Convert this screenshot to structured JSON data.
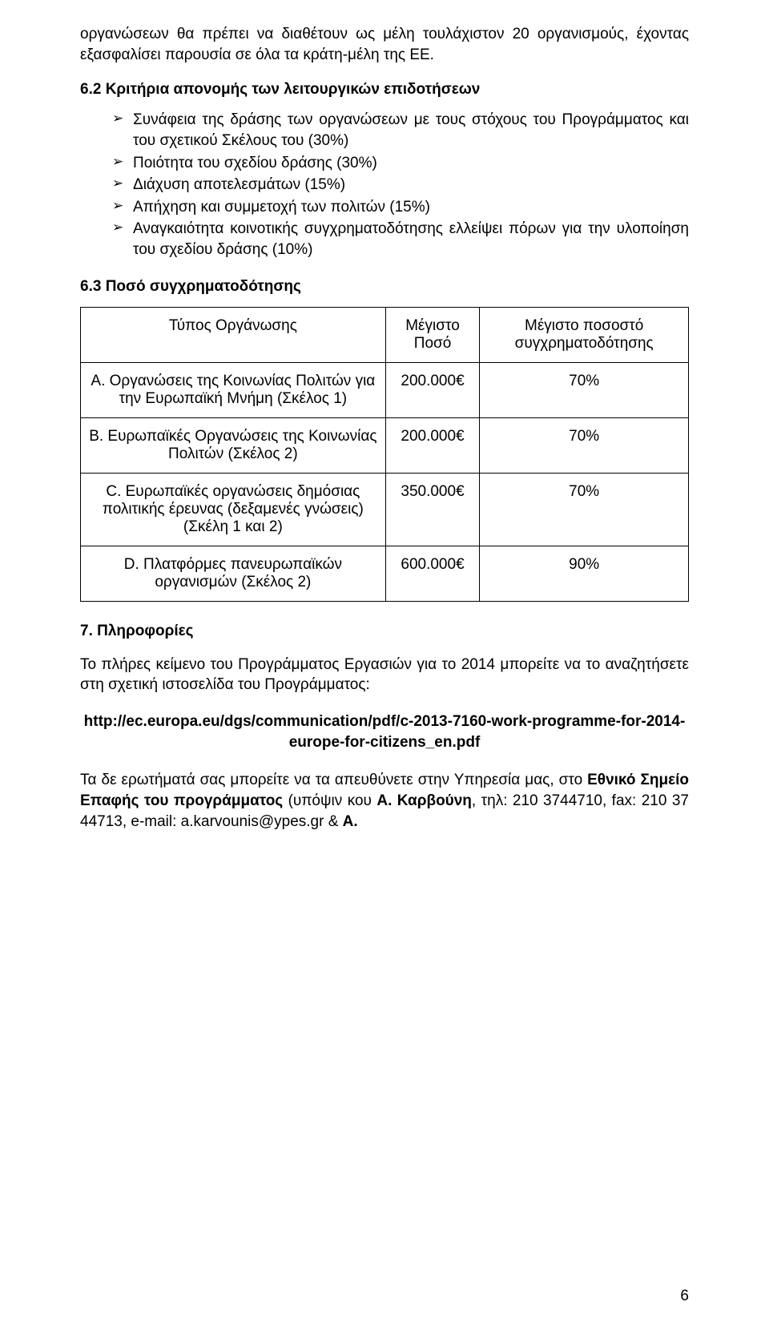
{
  "intro_para": "οργανώσεων θα πρέπει να διαθέτουν ως μέλη τουλάχιστον 20 οργανισμούς, έχοντας εξασφαλίσει παρουσία σε όλα τα κράτη-μέλη της ΕΕ.",
  "h62": "6.2 Κριτήρια απονομής των λειτουργικών επιδοτήσεων",
  "bullets": [
    "Συνάφεια της δράσης των οργανώσεων με τους στόχους του Προγράμματος και του σχετικού Σκέλους του (30%)",
    "Ποιότητα του σχεδίου δράσης (30%)",
    "Διάχυση αποτελεσμάτων (15%)",
    "Απήχηση και συμμετοχή των πολιτών (15%)",
    "Αναγκαιότητα κοινοτικής συγχρηματοδότησης ελλείψει πόρων για την υλοποίηση του σχεδίου δράσης (10%)"
  ],
  "h63": "6.3 Ποσό συγχρηματοδότησης",
  "table": {
    "headers": [
      "Τύπος Οργάνωσης",
      "Μέγιστο Ποσό",
      "Μέγιστο ποσοστό συγχρηματοδότησης"
    ],
    "rows": [
      {
        "type": "A. Οργανώσεις της Κοινωνίας Πολιτών για την Ευρωπαϊκή Μνήμη (Σκέλος 1)",
        "amount": "200.000€",
        "pct": "70%"
      },
      {
        "type": "B. Ευρωπαϊκές Οργανώσεις της Κοινωνίας Πολιτών (Σκέλος 2)",
        "amount": "200.000€",
        "pct": "70%"
      },
      {
        "type": "C. Ευρωπαϊκές οργανώσεις δημόσιας πολιτικής έρευνας (δεξαμενές γνώσεις)\n(Σκέλη 1 και 2)",
        "amount": "350.000€",
        "pct": "70%"
      },
      {
        "type": "D. Πλατφόρμες πανευρωπαϊκών οργανισμών (Σκέλος 2)",
        "amount": "600.000€",
        "pct": "90%"
      }
    ]
  },
  "h7": "7. Πληροφορίες",
  "info_para": "Το πλήρες κείμενο του Προγράμματος Εργασιών για το 2014 μπορείτε να το αναζητήσετε στη σχετική ιστοσελίδα του Προγράμματος:",
  "url": "http://ec.europa.eu/dgs/communication/pdf/c-2013-7160-work-programme-for-2014-europe-for-citizens_en.pdf",
  "contact_plain1": "Τα δε ερωτήματά σας μπορείτε να τα απευθύνετε στην Υπηρεσία μας, στο ",
  "contact_bold1": "Εθνικό Σημείο Επαφής του προγράμματος",
  "contact_plain2": " (υπόψιν κου ",
  "contact_bold2": "Α. Καρβούνη",
  "contact_plain3": ", τηλ: 210 3744710, fax: 210 37 44713, e-mail: a.karvounis@ypes.gr & ",
  "contact_bold3": "Α.",
  "page_number": "6"
}
